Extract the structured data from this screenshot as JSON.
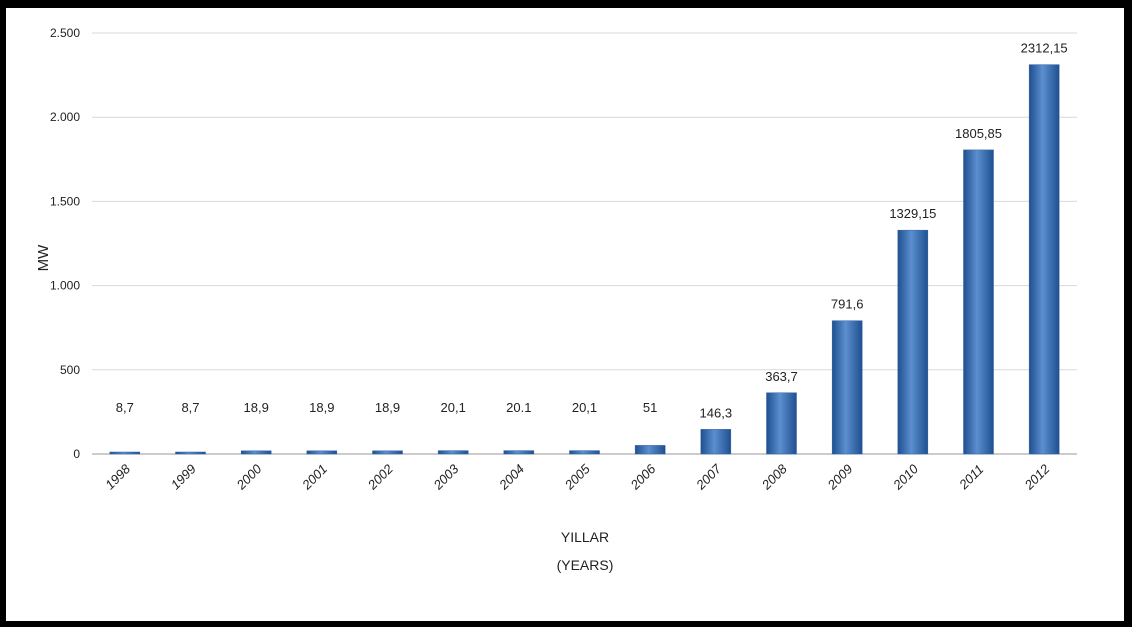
{
  "chart_data": {
    "type": "bar",
    "ylabel": "MW",
    "xlabel_line1": "YILLAR",
    "xlabel_line2": "(YEARS)",
    "ylim": [
      0,
      2500
    ],
    "yticks": [
      0,
      500,
      1000,
      1500,
      2000,
      2500
    ],
    "ytick_labels": [
      "0",
      "500",
      "1.000",
      "1.500",
      "2.000",
      "2.500"
    ],
    "grid": true,
    "categories": [
      "1998",
      "1999",
      "2000",
      "2001",
      "2002",
      "2003",
      "2004",
      "2005",
      "2006",
      "2007",
      "2008",
      "2009",
      "2010",
      "2011",
      "2012"
    ],
    "values": [
      8.7,
      8.7,
      18.9,
      18.9,
      18.9,
      20.1,
      20.1,
      20.1,
      51,
      146.3,
      363.7,
      791.6,
      1329.15,
      1805.85,
      2312.15
    ],
    "data_labels": [
      "8,7",
      "8,7",
      "18,9",
      "18,9",
      "18,9",
      "20,1",
      "20.1",
      "20,1",
      "51",
      "146,3",
      "363,7",
      "791,6",
      "1329,15",
      "1805,85",
      "2312,15"
    ],
    "colors": {
      "bar": "#2f63a8",
      "bar_light": "#5b8fd0",
      "grid": "#d9d9d9"
    }
  }
}
